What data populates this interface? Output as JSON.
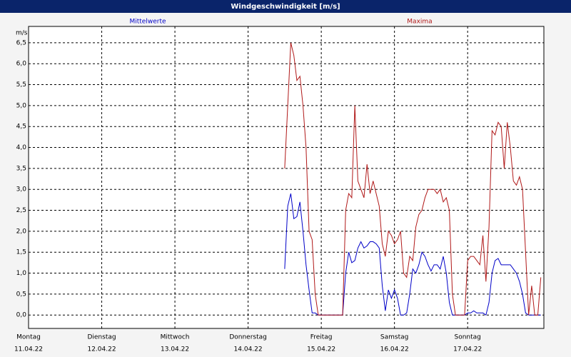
{
  "chart_data": {
    "type": "line",
    "title": "Windgeschwindigkeit [m/s]",
    "y_label": "m/s",
    "xlim": [
      0,
      169
    ],
    "ylim": [
      -0.32,
      6.89
    ],
    "xticks": [
      {
        "value": 0,
        "label": "Montag"
      },
      {
        "value": 24,
        "label": "Dienstag"
      },
      {
        "value": 48,
        "label": "Mittwoch"
      },
      {
        "value": 72,
        "label": "Donnerstag"
      },
      {
        "value": 96,
        "label": "Freitag"
      },
      {
        "value": 120,
        "label": "Samstag"
      },
      {
        "value": 144,
        "label": "Sonntag"
      }
    ],
    "xtick_dates": [
      "11.04.22",
      "12.04.22",
      "13.04.22",
      "14.04.22",
      "15.04.22",
      "16.04.22",
      "17.04.22"
    ],
    "yticks": [
      {
        "value": 0,
        "label": "0,0"
      },
      {
        "value": 0.5,
        "label": "0,5"
      },
      {
        "value": 1,
        "label": "1,0"
      },
      {
        "value": 1.5,
        "label": "1,5"
      },
      {
        "value": 2,
        "label": "2,0"
      },
      {
        "value": 2.5,
        "label": "2,5"
      },
      {
        "value": 3,
        "label": "3,0"
      },
      {
        "value": 3.5,
        "label": "3,5"
      },
      {
        "value": 4,
        "label": "4,0"
      },
      {
        "value": 4.5,
        "label": "4,5"
      },
      {
        "value": 5,
        "label": "5,0"
      },
      {
        "value": 5.5,
        "label": "5,5"
      },
      {
        "value": 6,
        "label": "6,0"
      },
      {
        "value": 6.5,
        "label": "6,5"
      }
    ],
    "grid": true,
    "x": [
      84,
      85,
      86,
      87,
      88,
      89,
      90,
      91,
      92,
      93,
      94,
      95,
      96,
      97,
      98,
      99,
      100,
      101,
      102,
      103,
      104,
      105,
      106,
      107,
      108,
      109,
      110,
      111,
      112,
      113,
      114,
      115,
      116,
      117,
      118,
      119,
      120,
      121,
      122,
      123,
      124,
      125,
      126,
      127,
      128,
      129,
      130,
      131,
      132,
      133,
      134,
      135,
      136,
      137,
      138,
      139,
      140,
      141,
      142,
      143,
      144,
      145,
      146,
      147,
      148,
      149,
      150,
      151,
      152,
      153,
      154,
      155,
      156,
      157,
      158,
      159,
      160,
      161,
      162,
      163,
      164,
      165,
      166,
      167,
      168
    ],
    "series": [
      {
        "name": "Mittelwerte",
        "color": "#0000c8",
        "values": [
          1.1,
          2.6,
          2.9,
          2.3,
          2.35,
          2.7,
          2.0,
          1.2,
          0.6,
          0.05,
          0.05,
          0,
          0,
          0,
          0,
          0,
          0,
          0,
          0,
          0,
          1.0,
          1.5,
          1.25,
          1.3,
          1.6,
          1.75,
          1.6,
          1.65,
          1.75,
          1.75,
          1.7,
          1.6,
          0.7,
          0.1,
          0.6,
          0.4,
          0.6,
          0.4,
          0,
          0,
          0.05,
          0.5,
          1.1,
          1.0,
          1.2,
          1.5,
          1.4,
          1.2,
          1.05,
          1.2,
          1.2,
          1.1,
          1.4,
          1.0,
          0.3,
          0,
          0,
          0,
          0,
          0,
          0.05,
          0.05,
          0.1,
          0.05,
          0.05,
          0.05,
          0,
          0.3,
          1.0,
          1.3,
          1.35,
          1.2,
          1.2,
          1.2,
          1.2,
          1.1,
          1.0,
          0.8,
          0.5,
          0.05,
          0,
          0,
          0,
          0,
          0
        ]
      },
      {
        "name": "Maxima",
        "color": "#b01818",
        "values": [
          3.5,
          5.0,
          6.5,
          6.2,
          5.6,
          5.7,
          5.0,
          4.0,
          2.0,
          1.8,
          0.5,
          0,
          0,
          0,
          0,
          0,
          0,
          0,
          0,
          0,
          2.5,
          2.9,
          2.8,
          5.0,
          3.2,
          3.0,
          2.8,
          3.6,
          2.9,
          3.2,
          2.9,
          2.6,
          1.7,
          1.4,
          2.0,
          1.9,
          1.7,
          1.8,
          2.0,
          1.0,
          0.9,
          1.4,
          1.3,
          2.1,
          2.4,
          2.5,
          2.8,
          3.0,
          3.0,
          3.0,
          2.9,
          3.0,
          2.7,
          2.8,
          2.5,
          0.5,
          0,
          0,
          0,
          0,
          1.3,
          1.4,
          1.4,
          1.3,
          1.2,
          1.9,
          0.8,
          2.1,
          4.4,
          4.3,
          4.6,
          4.5,
          3.5,
          4.6,
          4.0,
          3.2,
          3.1,
          3.3,
          3.0,
          1.5,
          0,
          0.7,
          0,
          0,
          0.9
        ]
      }
    ]
  }
}
